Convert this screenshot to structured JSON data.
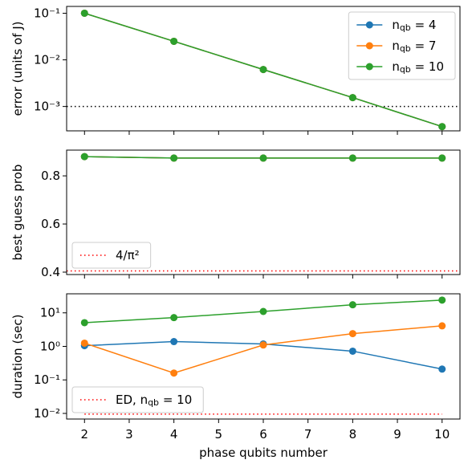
{
  "chart_data": [
    {
      "type": "line",
      "ylabel": "error (units of J)",
      "log_y": true,
      "x": [
        2,
        4,
        6,
        8,
        10
      ],
      "xlim": [
        1.6,
        10.4
      ],
      "xticks": [
        2,
        3,
        4,
        5,
        6,
        7,
        8,
        9,
        10
      ],
      "xtick_labels": false,
      "ylim": [
        0.0003,
        0.14
      ],
      "yticks": [
        {
          "value": 0.001,
          "label": "10⁻³"
        },
        {
          "value": 0.01,
          "label": "10⁻²"
        },
        {
          "value": 0.1,
          "label": "10⁻¹"
        }
      ],
      "series": [
        {
          "name": "n_qb = 4",
          "color": "#1f77b4",
          "values": [
            0.1,
            0.025,
            0.0062,
            0.00155,
            0.00037
          ]
        },
        {
          "name": "n_qb = 7",
          "color": "#ff7f0e",
          "values": [
            0.1,
            0.025,
            0.0062,
            0.00155,
            0.00037
          ]
        },
        {
          "name": "n_qb = 10",
          "color": "#2ca02c",
          "values": [
            0.1,
            0.025,
            0.0062,
            0.00155,
            0.00037
          ]
        }
      ],
      "hlines": [
        {
          "value": 0.001,
          "color": "#000000"
        }
      ],
      "legend": "upper right"
    },
    {
      "type": "line",
      "ylabel": "best guess prob",
      "log_y": false,
      "x": [
        2,
        4,
        6,
        8,
        10
      ],
      "xlim": [
        1.6,
        10.4
      ],
      "xticks": [
        2,
        3,
        4,
        5,
        6,
        7,
        8,
        9,
        10
      ],
      "xtick_labels": false,
      "ylim": [
        0.39,
        0.907
      ],
      "yticks": [
        0.4,
        0.6,
        0.8
      ],
      "series": [
        {
          "color": "#1f77b4",
          "values": [
            0.88,
            0.874,
            0.874,
            0.874,
            0.874
          ]
        },
        {
          "color": "#ff7f0e",
          "values": [
            0.88,
            0.874,
            0.874,
            0.874,
            0.874
          ]
        },
        {
          "color": "#2ca02c",
          "values": [
            0.88,
            0.874,
            0.874,
            0.874,
            0.874
          ]
        }
      ],
      "hlines": [
        {
          "name": "4/π²",
          "value": 0.405,
          "color": "#ff0000"
        }
      ],
      "legend": "lower left"
    },
    {
      "type": "line",
      "ylabel": "duration (sec)",
      "xlabel": "phase qubits number",
      "log_y": true,
      "x": [
        2,
        4,
        6,
        8,
        10
      ],
      "xlim": [
        1.6,
        10.4
      ],
      "xticks": [
        2,
        3,
        4,
        5,
        6,
        7,
        8,
        9,
        10
      ],
      "xtick_labels": true,
      "ylim": [
        0.0068,
        37
      ],
      "yticks": [
        {
          "value": 0.01,
          "label": "10⁻²"
        },
        {
          "value": 0.1,
          "label": "10⁻¹"
        },
        {
          "value": 1,
          "label": "10⁰"
        },
        {
          "value": 10,
          "label": "10¹"
        }
      ],
      "series": [
        {
          "color": "#1f77b4",
          "values": [
            1.05,
            1.39,
            1.18,
            0.72,
            0.21
          ]
        },
        {
          "color": "#ff7f0e",
          "values": [
            1.25,
            0.16,
            1.1,
            2.4,
            4.1
          ]
        },
        {
          "color": "#2ca02c",
          "values": [
            5.1,
            7.2,
            11,
            17.4,
            24
          ]
        }
      ],
      "hlines": [
        {
          "name": "ED, n_qb = 10",
          "value": 0.0095,
          "color": "#ff0000",
          "xrange": [
            2,
            10
          ]
        }
      ],
      "legend": "lower left"
    }
  ]
}
